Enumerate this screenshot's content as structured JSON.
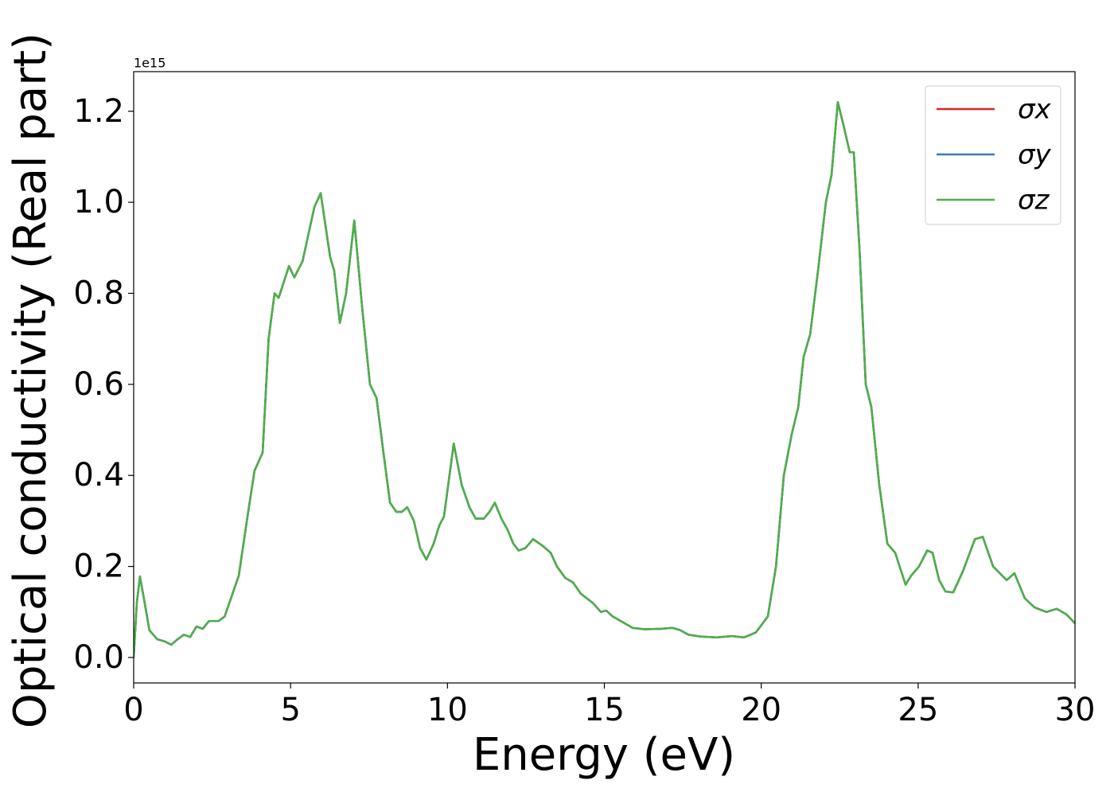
{
  "chart_data": {
    "type": "line",
    "xlabel": "Energy (eV)",
    "ylabel": "Optical conductivity (Real part)",
    "yoffset": "1e15",
    "xlim": [
      0,
      30
    ],
    "ylim": [
      -0.056,
      1.287
    ],
    "xticks": [
      0,
      5,
      10,
      15,
      20,
      25,
      30
    ],
    "yticks": [
      {
        "value": 0,
        "label": "0.0"
      },
      0.2,
      0.4,
      0.6,
      0.8,
      {
        "value": 1,
        "label": "1.0"
      },
      1.2
    ],
    "legend": "upper right",
    "x": [
      0,
      0.1,
      0.2,
      0.35,
      0.5,
      0.75,
      1.0,
      1.2,
      1.4,
      1.6,
      1.8,
      2.0,
      2.2,
      2.4,
      2.7,
      2.9,
      3.2,
      3.35,
      3.65,
      3.85,
      4.11,
      4.3,
      4.49,
      4.62,
      4.95,
      5.12,
      5.38,
      5.76,
      5.96,
      6.26,
      6.39,
      6.57,
      6.77,
      7.03,
      7.28,
      7.53,
      7.74,
      7.96,
      8.17,
      8.37,
      8.55,
      8.72,
      8.93,
      9.13,
      9.33,
      9.56,
      9.74,
      9.89,
      10.2,
      10.45,
      10.7,
      10.9,
      11.16,
      11.34,
      11.51,
      11.72,
      11.92,
      12.1,
      12.27,
      12.48,
      12.73,
      13.04,
      13.29,
      13.49,
      13.75,
      14.0,
      14.25,
      14.63,
      14.89,
      15.06,
      15.27,
      15.65,
      15.9,
      16.28,
      16.79,
      17.17,
      17.42,
      17.68,
      18.06,
      18.56,
      19.07,
      19.45,
      19.83,
      20.21,
      20.47,
      20.72,
      20.97,
      21.18,
      21.35,
      21.56,
      21.81,
      22.06,
      22.24,
      22.44,
      22.62,
      22.82,
      22.95,
      23.13,
      23.33,
      23.51,
      23.76,
      24.02,
      24.27,
      24.6,
      24.78,
      25.03,
      25.29,
      25.46,
      25.67,
      25.87,
      26.12,
      26.43,
      26.81,
      27.06,
      27.39,
      27.82,
      28.07,
      28.4,
      28.71,
      29.09,
      29.42,
      29.72,
      30
    ],
    "series": [
      {
        "name": "σx",
        "color": "#d62728",
        "values": [
          0.0,
          0.12,
          0.178,
          0.12,
          0.06,
          0.04,
          0.035,
          0.028,
          0.04,
          0.05,
          0.045,
          0.068,
          0.063,
          0.08,
          0.08,
          0.09,
          0.15,
          0.18,
          0.32,
          0.41,
          0.45,
          0.7,
          0.8,
          0.79,
          0.86,
          0.835,
          0.87,
          0.99,
          1.02,
          0.88,
          0.85,
          0.735,
          0.8,
          0.96,
          0.77,
          0.6,
          0.57,
          0.45,
          0.34,
          0.32,
          0.32,
          0.33,
          0.3,
          0.24,
          0.215,
          0.25,
          0.29,
          0.31,
          0.47,
          0.38,
          0.33,
          0.305,
          0.305,
          0.32,
          0.34,
          0.305,
          0.28,
          0.25,
          0.235,
          0.24,
          0.26,
          0.245,
          0.23,
          0.2,
          0.175,
          0.165,
          0.14,
          0.12,
          0.1,
          0.103,
          0.09,
          0.075,
          0.065,
          0.062,
          0.063,
          0.065,
          0.06,
          0.05,
          0.046,
          0.044,
          0.047,
          0.044,
          0.055,
          0.09,
          0.2,
          0.4,
          0.49,
          0.55,
          0.66,
          0.71,
          0.85,
          1.0,
          1.06,
          1.22,
          1.17,
          1.11,
          1.11,
          0.9,
          0.6,
          0.55,
          0.38,
          0.25,
          0.23,
          0.16,
          0.18,
          0.2,
          0.235,
          0.23,
          0.17,
          0.145,
          0.143,
          0.19,
          0.26,
          0.265,
          0.2,
          0.17,
          0.185,
          0.13,
          0.11,
          0.1,
          0.107,
          0.095,
          0.075
        ]
      },
      {
        "name": "σy",
        "color": "#377eb8",
        "values": [
          0.0,
          0.12,
          0.178,
          0.12,
          0.06,
          0.04,
          0.035,
          0.028,
          0.04,
          0.05,
          0.045,
          0.068,
          0.063,
          0.08,
          0.08,
          0.09,
          0.15,
          0.18,
          0.32,
          0.41,
          0.45,
          0.7,
          0.8,
          0.79,
          0.86,
          0.835,
          0.87,
          0.99,
          1.02,
          0.88,
          0.85,
          0.735,
          0.8,
          0.96,
          0.77,
          0.6,
          0.57,
          0.45,
          0.34,
          0.32,
          0.32,
          0.33,
          0.3,
          0.24,
          0.215,
          0.25,
          0.29,
          0.31,
          0.47,
          0.38,
          0.33,
          0.305,
          0.305,
          0.32,
          0.34,
          0.305,
          0.28,
          0.25,
          0.235,
          0.24,
          0.26,
          0.245,
          0.23,
          0.2,
          0.175,
          0.165,
          0.14,
          0.12,
          0.1,
          0.103,
          0.09,
          0.075,
          0.065,
          0.062,
          0.063,
          0.065,
          0.06,
          0.05,
          0.046,
          0.044,
          0.047,
          0.044,
          0.055,
          0.09,
          0.2,
          0.4,
          0.49,
          0.55,
          0.66,
          0.71,
          0.85,
          1.0,
          1.06,
          1.22,
          1.17,
          1.11,
          1.11,
          0.9,
          0.6,
          0.55,
          0.38,
          0.25,
          0.23,
          0.16,
          0.18,
          0.2,
          0.235,
          0.23,
          0.17,
          0.145,
          0.143,
          0.19,
          0.26,
          0.265,
          0.2,
          0.17,
          0.185,
          0.13,
          0.11,
          0.1,
          0.107,
          0.095,
          0.075
        ]
      },
      {
        "name": "σz",
        "color": "#4daf4a",
        "values": [
          0.0,
          0.12,
          0.178,
          0.12,
          0.06,
          0.04,
          0.035,
          0.028,
          0.04,
          0.05,
          0.045,
          0.068,
          0.063,
          0.08,
          0.08,
          0.09,
          0.15,
          0.18,
          0.32,
          0.41,
          0.45,
          0.7,
          0.8,
          0.79,
          0.86,
          0.835,
          0.87,
          0.99,
          1.02,
          0.88,
          0.85,
          0.735,
          0.8,
          0.96,
          0.77,
          0.6,
          0.57,
          0.45,
          0.34,
          0.32,
          0.32,
          0.33,
          0.3,
          0.24,
          0.215,
          0.25,
          0.29,
          0.31,
          0.47,
          0.38,
          0.33,
          0.305,
          0.305,
          0.32,
          0.34,
          0.305,
          0.28,
          0.25,
          0.235,
          0.24,
          0.26,
          0.245,
          0.23,
          0.2,
          0.175,
          0.165,
          0.14,
          0.12,
          0.1,
          0.103,
          0.09,
          0.075,
          0.065,
          0.062,
          0.063,
          0.065,
          0.06,
          0.05,
          0.046,
          0.044,
          0.047,
          0.044,
          0.055,
          0.09,
          0.2,
          0.4,
          0.49,
          0.55,
          0.66,
          0.71,
          0.85,
          1.0,
          1.06,
          1.22,
          1.17,
          1.11,
          1.11,
          0.9,
          0.6,
          0.55,
          0.38,
          0.25,
          0.23,
          0.16,
          0.18,
          0.2,
          0.235,
          0.23,
          0.17,
          0.145,
          0.143,
          0.19,
          0.26,
          0.265,
          0.2,
          0.17,
          0.185,
          0.13,
          0.11,
          0.1,
          0.107,
          0.095,
          0.075
        ]
      }
    ]
  }
}
